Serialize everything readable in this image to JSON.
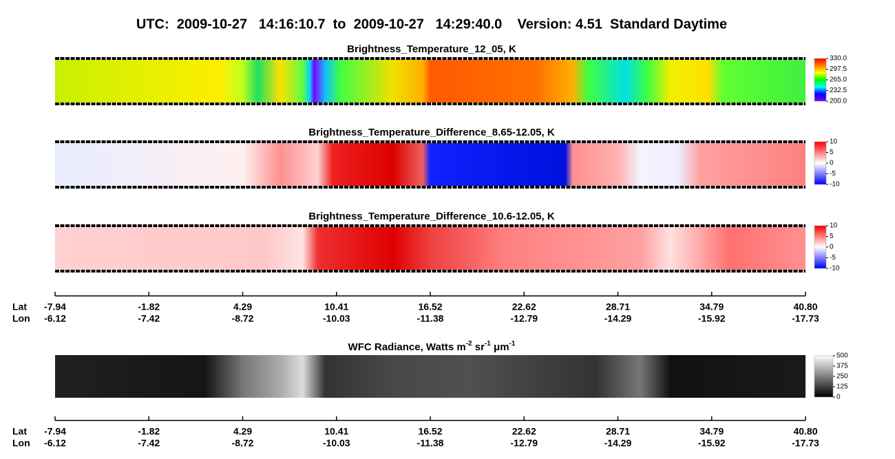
{
  "title": "UTC:  2009-10-27   14:16:10.7  to  2009-10-27   14:29:40.0    Version: 4.51  Standard Daytime",
  "panels": [
    {
      "title": "Brightness_Temperature_12_05, K",
      "colorbar": {
        "lim": [
          200,
          330
        ],
        "colors": [
          "#8000ff",
          "#0000ff",
          "#00ffff",
          "#00ff00",
          "#ffff00",
          "#ff8000",
          "#ff0000"
        ],
        "ticks": [
          {
            "value": 330,
            "label": "330.0"
          },
          {
            "value": 297.5,
            "label": "297.5"
          },
          {
            "value": 265,
            "label": "265.0"
          },
          {
            "value": 232.5,
            "label": "232.5"
          },
          {
            "value": 200,
            "label": "200.0"
          }
        ]
      }
    },
    {
      "title": "Brightness_Temperature_Difference_8.65-12.05, K",
      "colorbar": {
        "lim": [
          -10,
          10
        ],
        "colors": [
          "#0000ff",
          "#ffffff",
          "#ff0000"
        ],
        "ticks": [
          10,
          5,
          0,
          -5,
          -10
        ]
      }
    },
    {
      "title": "Brightness_Temperature_Difference_10.6-12.05, K",
      "colorbar": {
        "lim": [
          -10,
          10
        ],
        "colors": [
          "#0000ff",
          "#ffffff",
          "#ff0000"
        ],
        "ticks": [
          10,
          5,
          0,
          -5,
          -10
        ]
      }
    },
    {
      "title": [
        "WFC Radiance, Watts m",
        "-2",
        " sr",
        "-1",
        " μm",
        "-1"
      ],
      "colorbar": {
        "lim": [
          0,
          500
        ],
        "colors": [
          "#000000",
          "#ffffff"
        ],
        "ticks": [
          500,
          375,
          250,
          125,
          0
        ]
      }
    }
  ],
  "axes": [
    {
      "row_labels": [
        "Lat",
        "Lon"
      ],
      "lat": [
        -7.94,
        -1.82,
        4.29,
        10.41,
        16.52,
        22.62,
        28.71,
        34.79,
        {
          "value": 40.8,
          "label": "40.80"
        }
      ],
      "lon": [
        -6.12,
        -7.42,
        -8.72,
        -10.03,
        -11.38,
        -12.79,
        -14.29,
        -15.92,
        -17.73
      ]
    },
    {
      "row_labels": [
        "Lat",
        "Lon"
      ],
      "lat": [
        -7.94,
        -1.82,
        4.29,
        10.41,
        16.52,
        22.62,
        28.71,
        34.79,
        {
          "value": 40.8,
          "label": "40.80"
        }
      ],
      "lon": [
        -6.12,
        -7.42,
        -8.72,
        -10.03,
        -11.38,
        -12.79,
        -14.29,
        -15.92,
        -17.73
      ]
    }
  ]
}
